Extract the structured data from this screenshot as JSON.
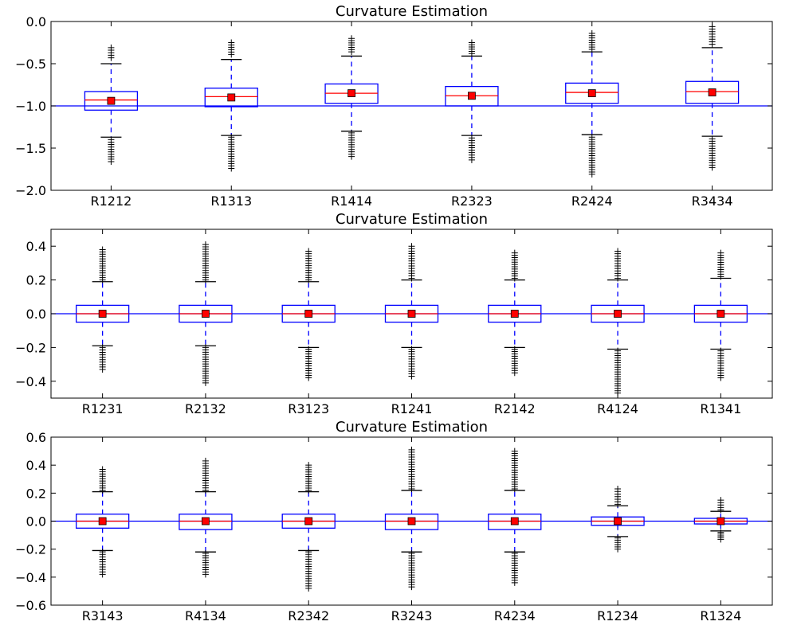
{
  "chart_data": [
    {
      "type": "box",
      "title": "Curvature Estimation",
      "ylim": [
        -2.0,
        0.0
      ],
      "yticks": [
        0.0,
        -0.5,
        -1.0,
        -1.5,
        -2.0
      ],
      "ytick_labels": [
        "0.0",
        "−0.5",
        "−1.0",
        "−1.5",
        "−2.0"
      ],
      "reference_line": -1.0,
      "categories": [
        "R1212",
        "R1313",
        "R1414",
        "R2323",
        "R2424",
        "R3434"
      ],
      "boxes": [
        {
          "q1": -1.05,
          "median": -0.93,
          "q3": -0.83,
          "mean": -0.94,
          "whisker_low": -1.37,
          "whisker_high": -0.5,
          "flier_low_max": -1.4,
          "flier_low_min": -1.66,
          "flier_high_min": -0.43,
          "flier_high_max": -0.31
        },
        {
          "q1": -1.01,
          "median": -0.89,
          "q3": -0.79,
          "mean": -0.9,
          "whisker_low": -1.35,
          "whisker_high": -0.45,
          "flier_low_max": -1.37,
          "flier_low_min": -1.74,
          "flier_high_min": -0.39,
          "flier_high_max": -0.25
        },
        {
          "q1": -0.97,
          "median": -0.85,
          "q3": -0.74,
          "mean": -0.85,
          "whisker_low": -1.3,
          "whisker_high": -0.41,
          "flier_low_max": -1.32,
          "flier_low_min": -1.6,
          "flier_high_min": -0.36,
          "flier_high_max": -0.2
        },
        {
          "q1": -1.0,
          "median": -0.88,
          "q3": -0.77,
          "mean": -0.88,
          "whisker_low": -1.35,
          "whisker_high": -0.41,
          "flier_low_max": -1.38,
          "flier_low_min": -1.64,
          "flier_high_min": -0.38,
          "flier_high_max": -0.25
        },
        {
          "q1": -0.97,
          "median": -0.84,
          "q3": -0.73,
          "mean": -0.85,
          "whisker_low": -1.34,
          "whisker_high": -0.36,
          "flier_low_max": -1.37,
          "flier_low_min": -1.81,
          "flier_high_min": -0.33,
          "flier_high_max": -0.14
        },
        {
          "q1": -0.97,
          "median": -0.83,
          "q3": -0.71,
          "mean": -0.84,
          "whisker_low": -1.36,
          "whisker_high": -0.31,
          "flier_low_max": -1.39,
          "flier_low_min": -1.73,
          "flier_high_min": -0.27,
          "flier_high_max": -0.06
        }
      ]
    },
    {
      "type": "box",
      "title": "Curvature Estimation",
      "ylim": [
        -0.5,
        0.5
      ],
      "yticks": [
        0.4,
        0.2,
        0.0,
        -0.2,
        -0.4
      ],
      "ytick_labels": [
        "0.4",
        "0.2",
        "0.0",
        "−0.2",
        "−0.4"
      ],
      "reference_line": 0.0,
      "categories": [
        "R1231",
        "R2132",
        "R3123",
        "R1241",
        "R2142",
        "R4124",
        "R1341"
      ],
      "boxes": [
        {
          "q1": -0.05,
          "median": 0.0,
          "q3": 0.05,
          "mean": 0.0,
          "whisker_low": -0.19,
          "whisker_high": 0.19,
          "flier_low_max": -0.2,
          "flier_low_min": -0.33,
          "flier_high_min": 0.2,
          "flier_high_max": 0.38
        },
        {
          "q1": -0.05,
          "median": 0.0,
          "q3": 0.05,
          "mean": 0.0,
          "whisker_low": -0.19,
          "whisker_high": 0.19,
          "flier_low_max": -0.2,
          "flier_low_min": -0.41,
          "flier_high_min": 0.2,
          "flier_high_max": 0.41
        },
        {
          "q1": -0.05,
          "median": 0.0,
          "q3": 0.05,
          "mean": 0.0,
          "whisker_low": -0.2,
          "whisker_high": 0.19,
          "flier_low_max": -0.21,
          "flier_low_min": -0.38,
          "flier_high_min": 0.2,
          "flier_high_max": 0.37
        },
        {
          "q1": -0.05,
          "median": 0.0,
          "q3": 0.05,
          "mean": 0.0,
          "whisker_low": -0.2,
          "whisker_high": 0.2,
          "flier_low_max": -0.21,
          "flier_low_min": -0.37,
          "flier_high_min": 0.21,
          "flier_high_max": 0.4
        },
        {
          "q1": -0.05,
          "median": 0.0,
          "q3": 0.05,
          "mean": 0.0,
          "whisker_low": -0.2,
          "whisker_high": 0.2,
          "flier_low_max": -0.21,
          "flier_low_min": -0.35,
          "flier_high_min": 0.21,
          "flier_high_max": 0.36
        },
        {
          "q1": -0.05,
          "median": 0.0,
          "q3": 0.05,
          "mean": 0.0,
          "whisker_low": -0.21,
          "whisker_high": 0.2,
          "flier_low_max": -0.22,
          "flier_low_min": -0.47,
          "flier_high_min": 0.21,
          "flier_high_max": 0.37
        },
        {
          "q1": -0.05,
          "median": 0.0,
          "q3": 0.05,
          "mean": 0.0,
          "whisker_low": -0.21,
          "whisker_high": 0.21,
          "flier_low_max": -0.22,
          "flier_low_min": -0.38,
          "flier_high_min": 0.22,
          "flier_high_max": 0.36
        }
      ]
    },
    {
      "type": "box",
      "title": "Curvature Estimation",
      "ylim": [
        -0.6,
        0.6
      ],
      "yticks": [
        0.6,
        0.4,
        0.2,
        0.0,
        -0.2,
        -0.4,
        -0.6
      ],
      "ytick_labels": [
        "0.6",
        "0.4",
        "0.2",
        "0.0",
        "−0.2",
        "−0.4",
        "−0.6"
      ],
      "reference_line": 0.0,
      "categories": [
        "R3143",
        "R4134",
        "R2342",
        "R3243",
        "R4234",
        "R1234",
        "R1324"
      ],
      "boxes": [
        {
          "q1": -0.05,
          "median": 0.0,
          "q3": 0.05,
          "mean": 0.0,
          "whisker_low": -0.21,
          "whisker_high": 0.21,
          "flier_low_max": -0.22,
          "flier_low_min": -0.38,
          "flier_high_min": 0.22,
          "flier_high_max": 0.37
        },
        {
          "q1": -0.06,
          "median": 0.0,
          "q3": 0.05,
          "mean": 0.0,
          "whisker_low": -0.22,
          "whisker_high": 0.21,
          "flier_low_max": -0.23,
          "flier_low_min": -0.38,
          "flier_high_min": 0.22,
          "flier_high_max": 0.43
        },
        {
          "q1": -0.05,
          "median": 0.0,
          "q3": 0.05,
          "mean": 0.0,
          "whisker_low": -0.21,
          "whisker_high": 0.21,
          "flier_low_max": -0.22,
          "flier_low_min": -0.48,
          "flier_high_min": 0.22,
          "flier_high_max": 0.4
        },
        {
          "q1": -0.06,
          "median": 0.0,
          "q3": 0.05,
          "mean": 0.0,
          "whisker_low": -0.22,
          "whisker_high": 0.22,
          "flier_low_max": -0.23,
          "flier_low_min": -0.47,
          "flier_high_min": 0.23,
          "flier_high_max": 0.51
        },
        {
          "q1": -0.06,
          "median": 0.0,
          "q3": 0.05,
          "mean": 0.0,
          "whisker_low": -0.22,
          "whisker_high": 0.22,
          "flier_low_max": -0.23,
          "flier_low_min": -0.44,
          "flier_high_min": 0.23,
          "flier_high_max": 0.5
        },
        {
          "q1": -0.03,
          "median": 0.0,
          "q3": 0.03,
          "mean": 0.0,
          "whisker_low": -0.11,
          "whisker_high": 0.11,
          "flier_low_max": -0.12,
          "flier_low_min": -0.2,
          "flier_high_min": 0.12,
          "flier_high_max": 0.23
        },
        {
          "q1": -0.02,
          "median": 0.0,
          "q3": 0.02,
          "mean": 0.0,
          "whisker_low": -0.07,
          "whisker_high": 0.07,
          "flier_low_max": -0.08,
          "flier_low_min": -0.13,
          "flier_high_min": 0.08,
          "flier_high_max": 0.15
        }
      ]
    }
  ],
  "style": {
    "box_color": "#0000ff",
    "median_color": "#ff0000",
    "mean_marker_color": "#ff0000",
    "reference_line_color": "#0000ff",
    "whisker_color": "#0000ff",
    "cap_color": "#000000",
    "flier_color": "#000000",
    "axis_color": "#000000",
    "background": "#ffffff"
  }
}
